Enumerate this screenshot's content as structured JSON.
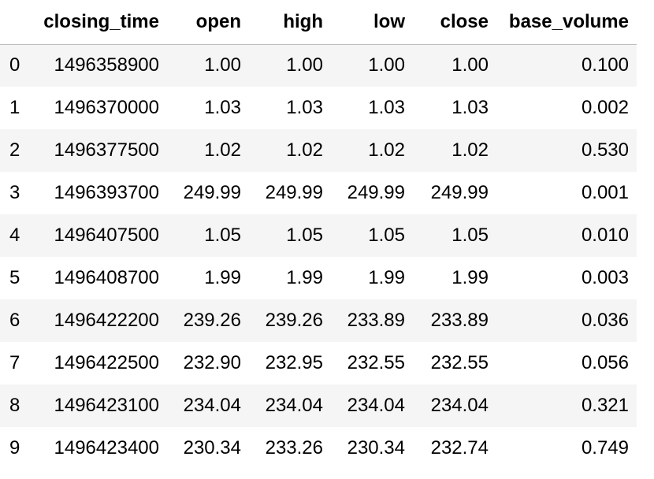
{
  "table": {
    "columns": [
      "closing_time",
      "open",
      "high",
      "low",
      "close",
      "base_volume"
    ],
    "rows": [
      {
        "index": "0",
        "closing_time": "1496358900",
        "open": "1.00",
        "high": "1.00",
        "low": "1.00",
        "close": "1.00",
        "base_volume": "0.100"
      },
      {
        "index": "1",
        "closing_time": "1496370000",
        "open": "1.03",
        "high": "1.03",
        "low": "1.03",
        "close": "1.03",
        "base_volume": "0.002"
      },
      {
        "index": "2",
        "closing_time": "1496377500",
        "open": "1.02",
        "high": "1.02",
        "low": "1.02",
        "close": "1.02",
        "base_volume": "0.530"
      },
      {
        "index": "3",
        "closing_time": "1496393700",
        "open": "249.99",
        "high": "249.99",
        "low": "249.99",
        "close": "249.99",
        "base_volume": "0.001"
      },
      {
        "index": "4",
        "closing_time": "1496407500",
        "open": "1.05",
        "high": "1.05",
        "low": "1.05",
        "close": "1.05",
        "base_volume": "0.010"
      },
      {
        "index": "5",
        "closing_time": "1496408700",
        "open": "1.99",
        "high": "1.99",
        "low": "1.99",
        "close": "1.99",
        "base_volume": "0.003"
      },
      {
        "index": "6",
        "closing_time": "1496422200",
        "open": "239.26",
        "high": "239.26",
        "low": "233.89",
        "close": "233.89",
        "base_volume": "0.036"
      },
      {
        "index": "7",
        "closing_time": "1496422500",
        "open": "232.90",
        "high": "232.95",
        "low": "232.55",
        "close": "232.55",
        "base_volume": "0.056"
      },
      {
        "index": "8",
        "closing_time": "1496423100",
        "open": "234.04",
        "high": "234.04",
        "low": "234.04",
        "close": "234.04",
        "base_volume": "0.321"
      },
      {
        "index": "9",
        "closing_time": "1496423400",
        "open": "230.34",
        "high": "233.26",
        "low": "230.34",
        "close": "232.74",
        "base_volume": "0.749"
      }
    ]
  }
}
